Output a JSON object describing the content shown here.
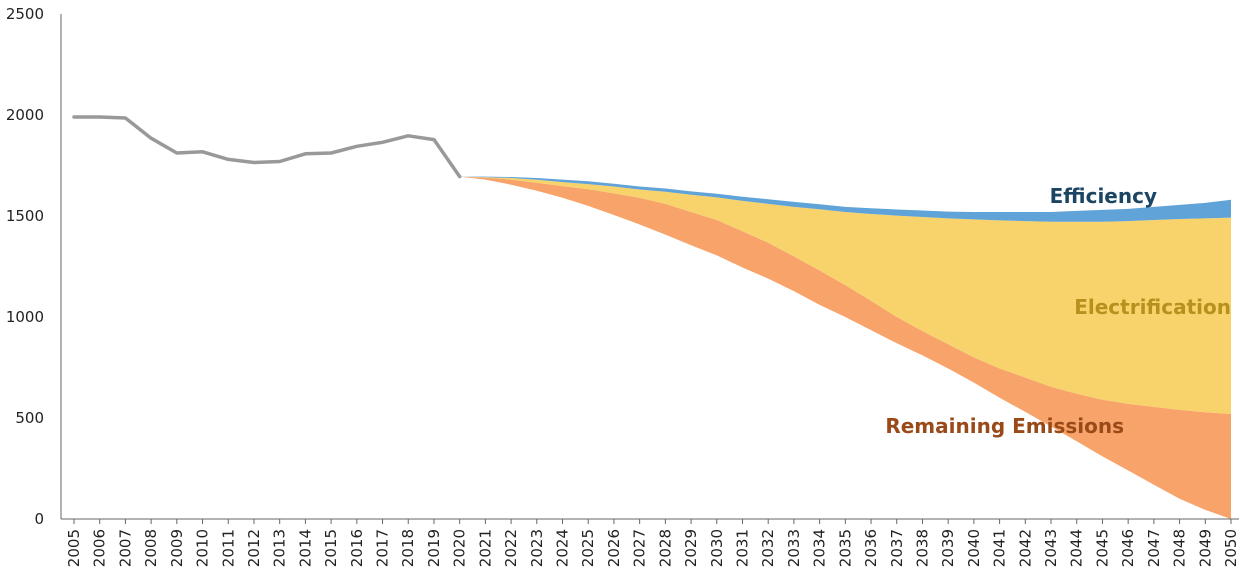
{
  "chart_data": {
    "type": "area",
    "x_type": "year",
    "years": [
      2005,
      2006,
      2007,
      2008,
      2009,
      2010,
      2011,
      2012,
      2013,
      2014,
      2015,
      2016,
      2017,
      2018,
      2019,
      2020,
      2021,
      2022,
      2023,
      2024,
      2025,
      2026,
      2027,
      2028,
      2029,
      2030,
      2031,
      2032,
      2033,
      2034,
      2035,
      2036,
      2037,
      2038,
      2039,
      2040,
      2041,
      2042,
      2043,
      2044,
      2045,
      2046,
      2047,
      2048,
      2049,
      2050
    ],
    "historical": {
      "color": "#999999",
      "years": [
        2005,
        2006,
        2007,
        2008,
        2009,
        2010,
        2011,
        2012,
        2013,
        2014,
        2015,
        2016,
        2017,
        2018,
        2019,
        2020
      ],
      "values": [
        1990,
        1990,
        1985,
        1885,
        1812,
        1818,
        1780,
        1765,
        1770,
        1808,
        1812,
        1845,
        1865,
        1897,
        1878,
        1695
      ]
    },
    "projection_years": [
      2020,
      2021,
      2022,
      2023,
      2024,
      2025,
      2026,
      2027,
      2028,
      2029,
      2030,
      2031,
      2032,
      2033,
      2034,
      2035,
      2036,
      2037,
      2038,
      2039,
      2040,
      2041,
      2042,
      2043,
      2044,
      2045,
      2046,
      2047,
      2048,
      2049,
      2050
    ],
    "series": [
      {
        "name": "Efficiency",
        "color": "#5fa3d8",
        "label_color": "#1b4562",
        "lower": [
          1695,
          1692,
          1688,
          1679,
          1668,
          1658,
          1646,
          1631,
          1620,
          1605,
          1592,
          1575,
          1560,
          1545,
          1533,
          1520,
          1510,
          1502,
          1495,
          1488,
          1483,
          1478,
          1475,
          1472,
          1472,
          1472,
          1475,
          1480,
          1485,
          1488,
          1492
        ],
        "upper": [
          1695,
          1695,
          1693,
          1688,
          1680,
          1672,
          1660,
          1646,
          1636,
          1622,
          1610,
          1595,
          1583,
          1570,
          1558,
          1545,
          1538,
          1532,
          1527,
          1522,
          1520,
          1520,
          1520,
          1520,
          1525,
          1530,
          1535,
          1545,
          1555,
          1565,
          1580
        ]
      },
      {
        "name": "Electrification",
        "color": "#f8d36b",
        "label_color": "#b8901d",
        "lower": [
          1695,
          1690,
          1680,
          1665,
          1648,
          1632,
          1612,
          1590,
          1560,
          1520,
          1480,
          1425,
          1368,
          1300,
          1230,
          1158,
          1080,
          1000,
          930,
          865,
          800,
          745,
          700,
          655,
          620,
          590,
          570,
          555,
          540,
          528,
          520
        ],
        "upper": [
          1695,
          1692,
          1688,
          1679,
          1668,
          1658,
          1646,
          1631,
          1620,
          1605,
          1592,
          1575,
          1560,
          1545,
          1533,
          1520,
          1510,
          1502,
          1495,
          1488,
          1483,
          1478,
          1475,
          1472,
          1472,
          1472,
          1475,
          1480,
          1485,
          1488,
          1492
        ]
      },
      {
        "name": "Remaining Emissions",
        "color": "#f7a36a",
        "label_color": "#9a4a18",
        "lower": [
          1695,
          1680,
          1655,
          1625,
          1590,
          1550,
          1505,
          1458,
          1408,
          1355,
          1305,
          1245,
          1190,
          1128,
          1060,
          1000,
          935,
          870,
          810,
          745,
          675,
          600,
          530,
          458,
          385,
          310,
          240,
          170,
          100,
          45,
          0
        ],
        "upper": [
          1695,
          1690,
          1680,
          1665,
          1648,
          1632,
          1612,
          1590,
          1560,
          1520,
          1480,
          1425,
          1368,
          1300,
          1230,
          1158,
          1080,
          1000,
          930,
          865,
          800,
          745,
          700,
          655,
          620,
          590,
          570,
          555,
          540,
          528,
          520
        ]
      }
    ],
    "y_ticks": [
      "0",
      "500",
      "1000",
      "1500",
      "2000",
      "2500"
    ],
    "ylim": [
      0,
      2500
    ],
    "grid": false,
    "legend": "inline-labels"
  }
}
